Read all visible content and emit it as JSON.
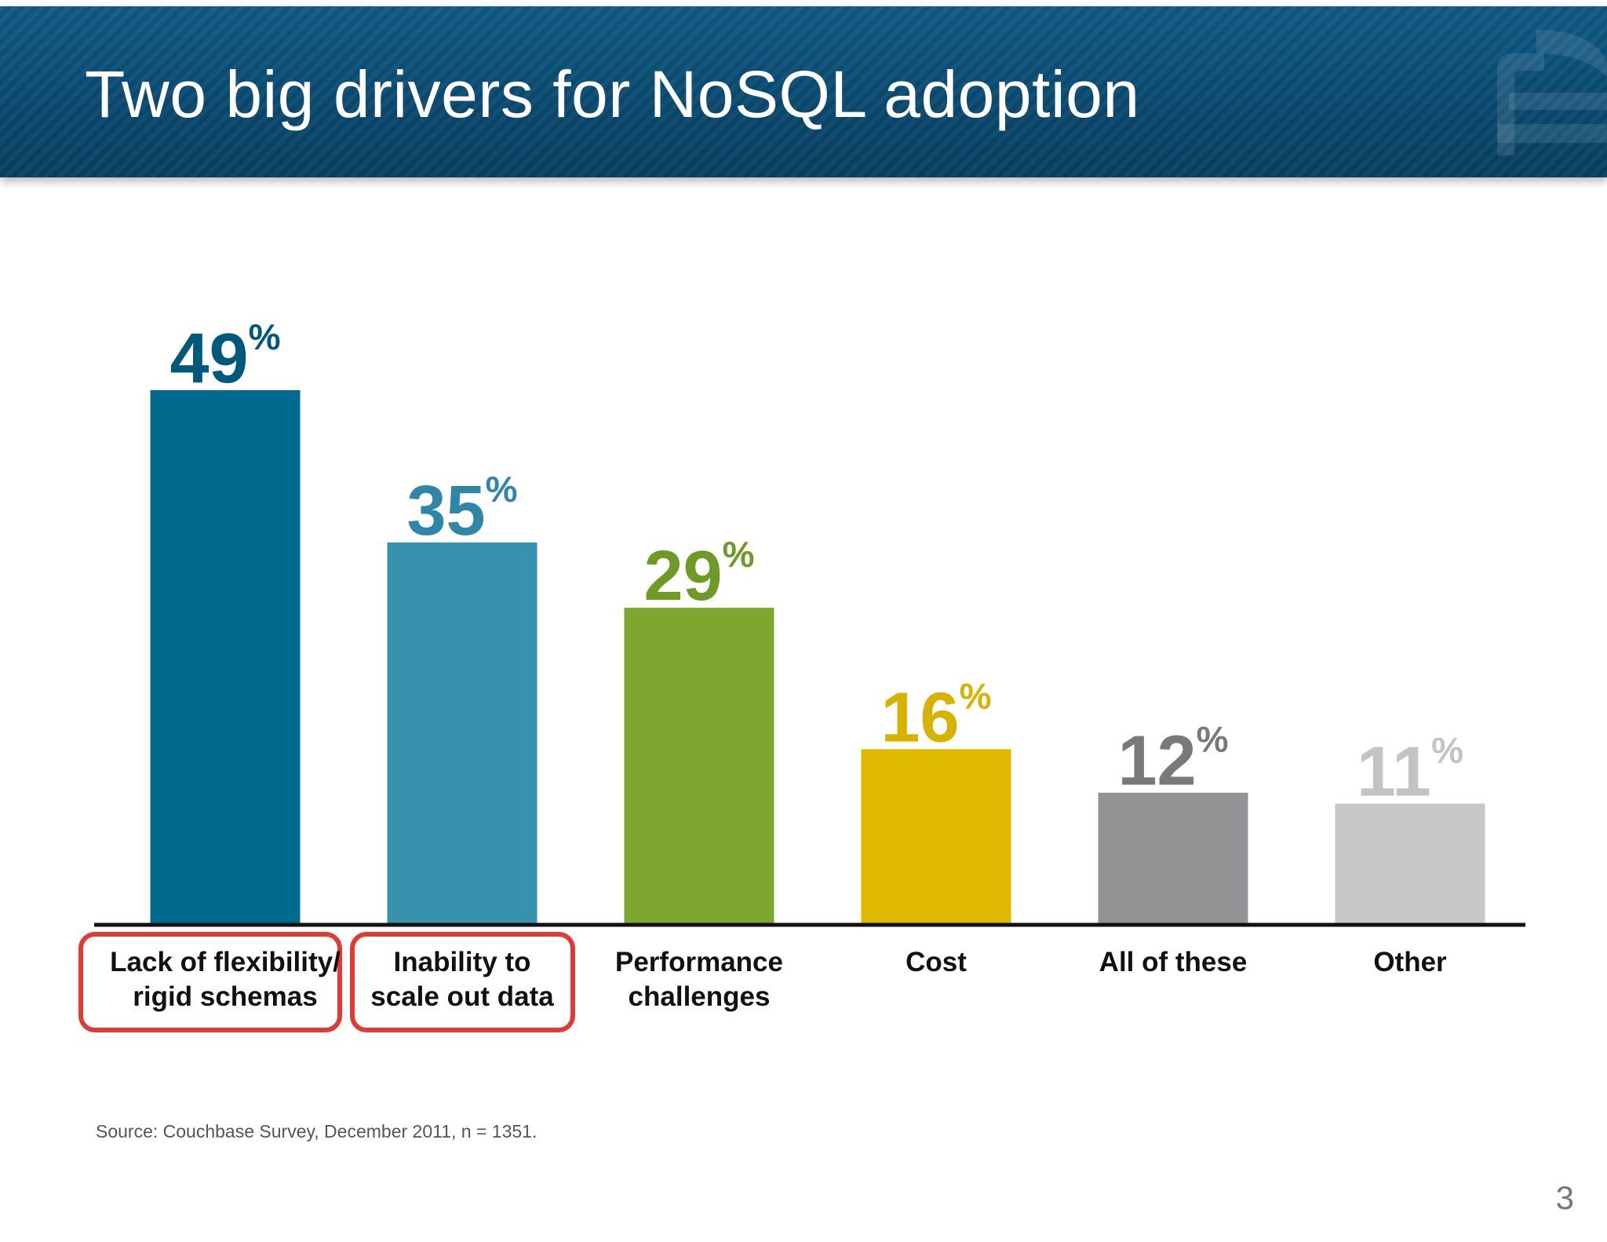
{
  "slide": {
    "title": "Two big drivers for NoSQL adoption",
    "source": "Source: Couchbase Survey, December 2011, n = 1351.",
    "page_number": "3"
  },
  "chart_data": {
    "type": "bar",
    "categories": [
      [
        "Lack of flexibility/",
        "rigid schemas"
      ],
      [
        "Inability to",
        "scale out data"
      ],
      [
        "Performance",
        "challenges"
      ],
      [
        "Cost"
      ],
      [
        "All of these"
      ],
      [
        "Other"
      ]
    ],
    "values": [
      49,
      35,
      29,
      16,
      12,
      11
    ],
    "value_suffix": "%",
    "bar_colors": [
      "#006b8f",
      "#3891ae",
      "#7ea72f",
      "#dfb900",
      "#939294",
      "#c8c7ca"
    ],
    "label_colors": [
      "#00587a",
      "#2f86a6",
      "#6e9a25",
      "#d7b200",
      "#79787c",
      "#c3c3c7"
    ],
    "highlighted": [
      true,
      true,
      false,
      false,
      false,
      false
    ],
    "highlight_color": "#e03a33",
    "ylim": [
      0,
      49
    ],
    "grid": false,
    "legend": "none"
  }
}
